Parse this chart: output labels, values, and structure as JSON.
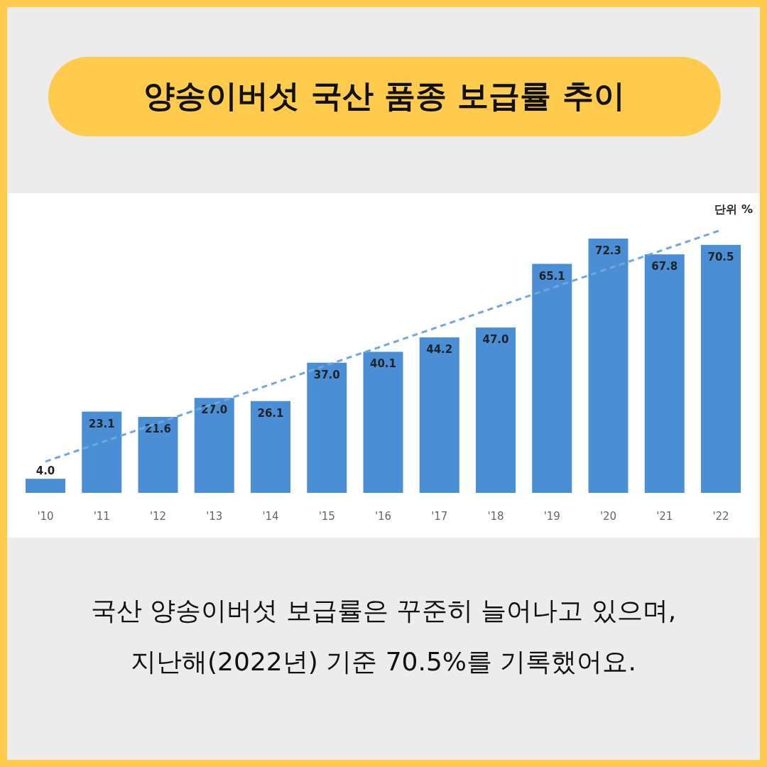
{
  "chart_data": {
    "type": "bar",
    "title": "양송이버섯 국산 품종 보급률 추이",
    "categories": [
      "'10",
      "'11",
      "'12",
      "'13",
      "'14",
      "'15",
      "'16",
      "'17",
      "'18",
      "'19",
      "'20",
      "'21",
      "'22"
    ],
    "series": [
      {
        "color": "#4a8fd6",
        "values": [
          4.0,
          23.1,
          21.6,
          27.0,
          26.1,
          37.0,
          40.1,
          44.2,
          47.0,
          65.1,
          72.3,
          67.8,
          70.5
        ],
        "value_labels": [
          "4.0",
          "23.1",
          "21.6",
          "27.0",
          "26.1",
          "37.0",
          "40.1",
          "44.2",
          "47.0",
          "65.1",
          "72.3",
          "67.8",
          "70.5"
        ]
      },
      {
        "type": "line",
        "color": "#6fa8dc",
        "line_style": "dashed",
        "x": [
          "'10",
          "'22"
        ],
        "values": [
          8.9,
          74.7
        ]
      }
    ],
    "annotations": [
      "단위 %",
      "국산 양송이버섯 보급률은 꾸준히 늘어나고 있으며,",
      "지난해(2022년) 기준 70.5%를 기록했어요."
    ]
  }
}
